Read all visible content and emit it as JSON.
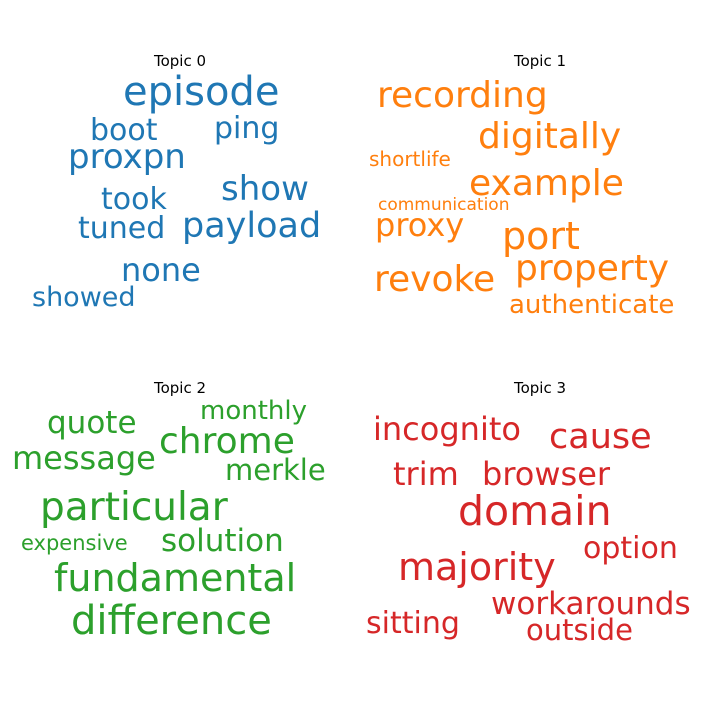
{
  "topics": [
    {
      "title": "Topic 0",
      "color": "#1f77b4",
      "words": [
        "episode",
        "boot",
        "ping",
        "proxpn",
        "show",
        "took",
        "tuned",
        "payload",
        "none",
        "showed"
      ]
    },
    {
      "title": "Topic 1",
      "color": "#ff7f0e",
      "words": [
        "recording",
        "digitally",
        "shortlife",
        "example",
        "communication",
        "proxy",
        "port",
        "property",
        "revoke",
        "authenticate"
      ]
    },
    {
      "title": "Topic 2",
      "color": "#2ca02c",
      "words": [
        "monthly",
        "quote",
        "chrome",
        "message",
        "merkle",
        "particular",
        "expensive",
        "solution",
        "fundamental",
        "difference"
      ]
    },
    {
      "title": "Topic 3",
      "color": "#d62728",
      "words": [
        "incognito",
        "cause",
        "trim",
        "browser",
        "domain",
        "option",
        "majority",
        "workarounds",
        "sitting",
        "outside"
      ]
    }
  ]
}
